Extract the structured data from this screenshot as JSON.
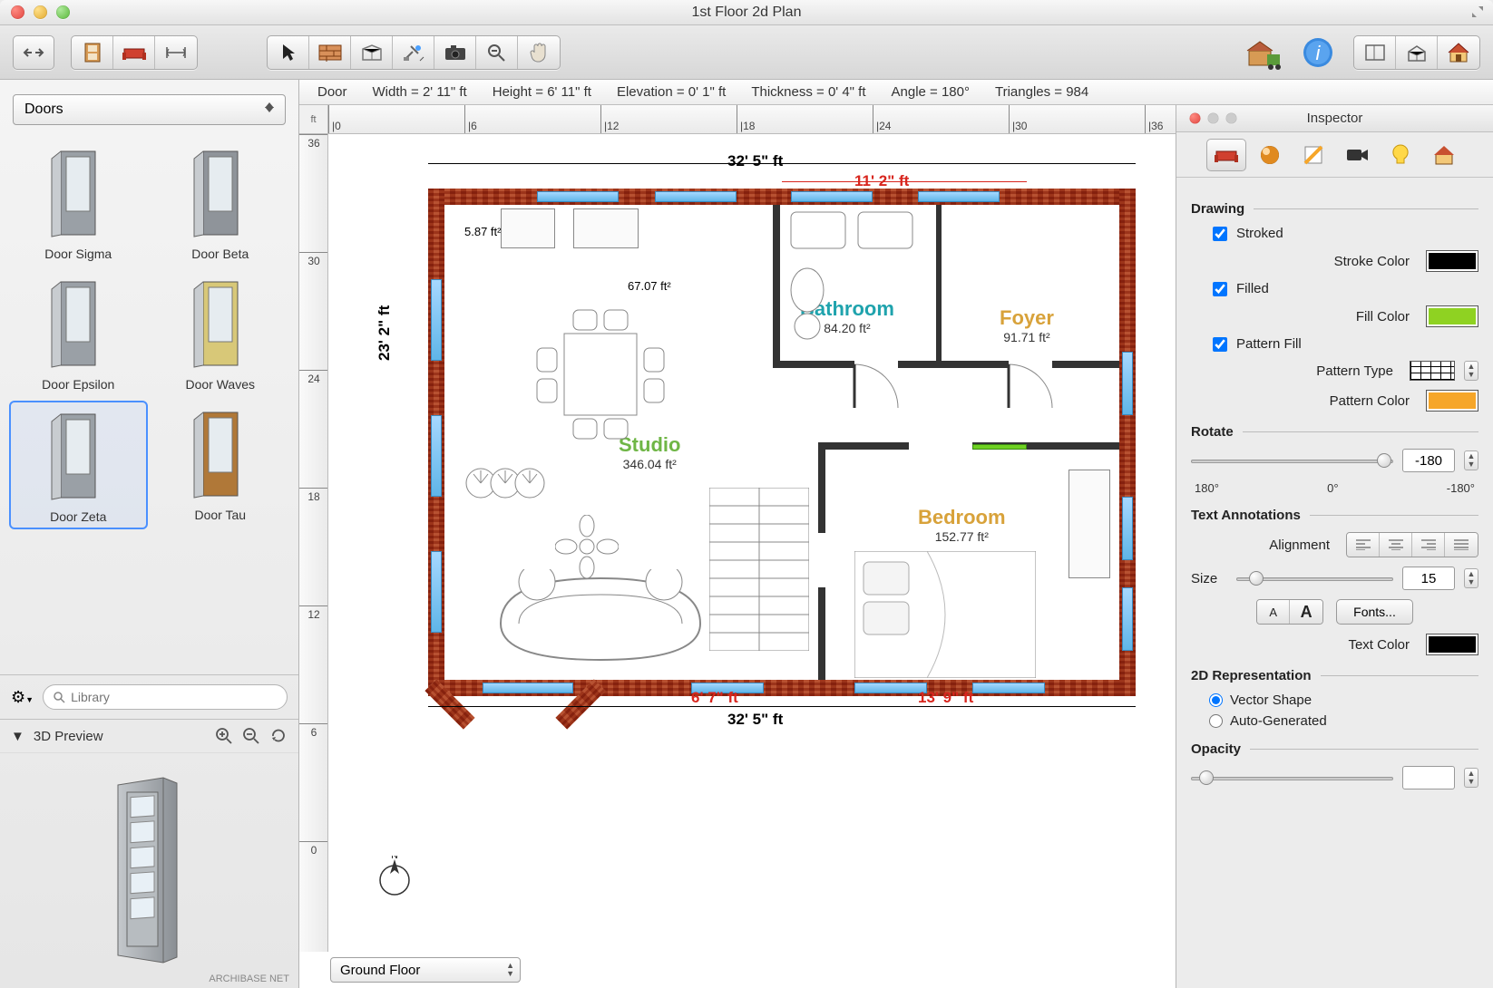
{
  "window": {
    "title": "1st Floor 2d Plan"
  },
  "statusbar": {
    "object": "Door",
    "width": "Width = 2' 11\" ft",
    "height": "Height = 6' 11\" ft",
    "elevation": "Elevation = 0' 1\" ft",
    "thickness": "Thickness = 0' 4\" ft",
    "angle": "Angle = 180°",
    "triangles": "Triangles = 984"
  },
  "library": {
    "category": "Doors",
    "search_placeholder": "Library",
    "preview_title": "3D Preview",
    "watermark": "ARCHIBASE NET",
    "items": [
      {
        "label": "Door Sigma",
        "selected": false,
        "color": "#9aa0a6"
      },
      {
        "label": "Door Beta",
        "selected": false,
        "color": "#8f949a"
      },
      {
        "label": "Door Epsilon",
        "selected": false,
        "color": "#9aa0a6"
      },
      {
        "label": "Door Waves",
        "selected": false,
        "color": "#d8c878"
      },
      {
        "label": "Door Zeta",
        "selected": true,
        "color": "#9aa0a6"
      },
      {
        "label": "Door Tau",
        "selected": false,
        "color": "#b07838"
      }
    ]
  },
  "ruler": {
    "unit": "ft",
    "h_ticks": [
      "|0",
      "|6",
      "|12",
      "|18",
      "|24",
      "|30",
      "|36"
    ],
    "v_ticks": [
      "36",
      "30",
      "24",
      "18",
      "12",
      "6",
      "0"
    ]
  },
  "floor_selector": {
    "value": "Ground Floor"
  },
  "plan": {
    "outer_dim_top": "32' 5\" ft",
    "outer_dim_bottom": "32' 5\" ft",
    "outer_dim_left": "23' 2\" ft",
    "dim_top_right": "11' 2\" ft",
    "dim_bottom_left": "6' 7\" ft",
    "dim_bottom_right": "13' 9\" ft",
    "note_tl": "5.87 ft²",
    "note_tc": "67.07 ft²",
    "rooms": {
      "studio": {
        "name": "Studio",
        "area": "346.04 ft²",
        "color": "#6fb646"
      },
      "bathroom": {
        "name": "Bathroom",
        "area": "84.20 ft²",
        "color": "#1fa3ad"
      },
      "foyer": {
        "name": "Foyer",
        "area": "91.71 ft²",
        "color": "#d8a23a"
      },
      "bedroom": {
        "name": "Bedroom",
        "area": "152.77 ft²",
        "color": "#d8a23a"
      }
    },
    "wall_color": "#b85c3b",
    "window_color": "#5fb5e8"
  },
  "inspector": {
    "title": "Inspector",
    "drawing": {
      "heading": "Drawing",
      "stroked_label": "Stroked",
      "stroked": true,
      "stroke_color_label": "Stroke Color",
      "stroke_color": "#000000",
      "filled_label": "Filled",
      "filled": true,
      "fill_color_label": "Fill Color",
      "fill_color": "#8fd222",
      "pattern_fill_label": "Pattern Fill",
      "pattern_fill": true,
      "pattern_type_label": "Pattern Type",
      "pattern_color_label": "Pattern Color",
      "pattern_color": "#f6a629"
    },
    "rotate": {
      "heading": "Rotate",
      "value": "-180",
      "min_label": "180°",
      "mid_label": "0°",
      "max_label": "-180°",
      "thumb_pos_pct": 92
    },
    "text": {
      "heading": "Text Annotations",
      "alignment_label": "Alignment",
      "size_label": "Size",
      "size_value": "15",
      "size_thumb_pct": 8,
      "small_a": "A",
      "big_a": "A",
      "fonts_btn": "Fonts...",
      "text_color_label": "Text Color",
      "text_color": "#000000"
    },
    "rep2d": {
      "heading": "2D Representation",
      "vector_label": "Vector Shape",
      "auto_label": "Auto-Generated",
      "selected": "vector"
    },
    "opacity": {
      "heading": "Opacity",
      "thumb_pct": 4
    }
  },
  "colors": {
    "red": "#d8261e",
    "accent_blue": "#4a90ff"
  }
}
